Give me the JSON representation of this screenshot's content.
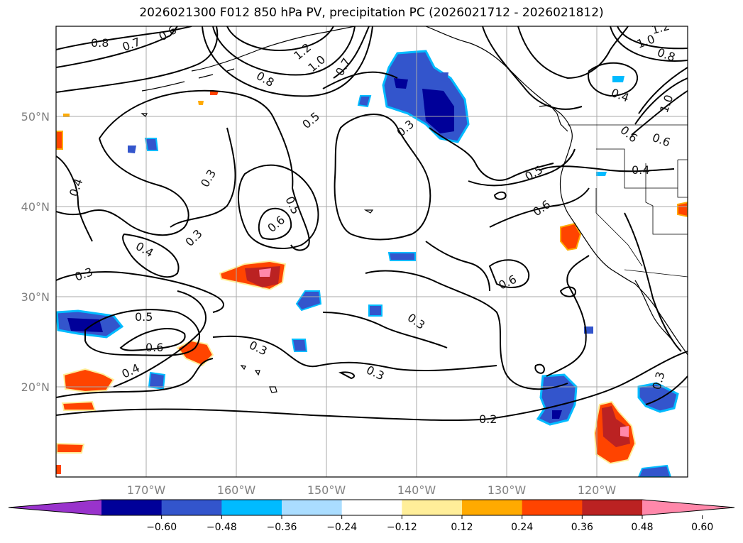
{
  "title": "2026021300 F012 850 hPa PV, precipitation PC (2026021712 - 2026021812)",
  "lat_labels": [
    "50°N",
    "40°N",
    "30°N",
    "20°N"
  ],
  "lon_labels": [
    "170°W",
    "160°W",
    "150°W",
    "140°W",
    "130°W",
    "120°W"
  ],
  "colorbar": {
    "ticks": [
      "−0.60",
      "−0.48",
      "−0.36",
      "−0.24",
      "−0.12",
      "0.12",
      "0.24",
      "0.36",
      "0.48",
      "0.60"
    ],
    "colors": [
      "#9933cc",
      "#000099",
      "#3355cc",
      "#00bbff",
      "#aaddff",
      "#ffffff",
      "#ffee99",
      "#ffaa00",
      "#ff4400",
      "#bb2222",
      "#ff88aa"
    ],
    "extend": "both"
  },
  "contour_labels": [
    {
      "text": "0.8"
    },
    {
      "text": "0.7"
    },
    {
      "text": "0.6"
    },
    {
      "text": "1.2"
    },
    {
      "text": "1.0"
    },
    {
      "text": "0.7"
    },
    {
      "text": "0.8"
    },
    {
      "text": "0.5"
    },
    {
      "text": "0.3"
    },
    {
      "text": "0.4"
    },
    {
      "text": "0.3"
    },
    {
      "text": "0.5"
    },
    {
      "text": "0.6"
    },
    {
      "text": "0.3"
    },
    {
      "text": "0.4"
    },
    {
      "text": "0.3"
    },
    {
      "text": "0.5"
    },
    {
      "text": "0.6"
    },
    {
      "text": "0.4"
    },
    {
      "text": "0.3"
    },
    {
      "text": "0.3"
    },
    {
      "text": "0.3"
    },
    {
      "text": "0.5"
    },
    {
      "text": "0.6"
    },
    {
      "text": "0.6"
    },
    {
      "text": "0.2"
    },
    {
      "text": "0.4"
    },
    {
      "text": "0.4"
    },
    {
      "text": "1.0"
    },
    {
      "text": "0.8"
    },
    {
      "text": "1.2"
    },
    {
      "text": "0.6"
    },
    {
      "text": "0.3"
    },
    {
      "text": "1.0"
    },
    {
      "text": "0.6"
    }
  ]
}
